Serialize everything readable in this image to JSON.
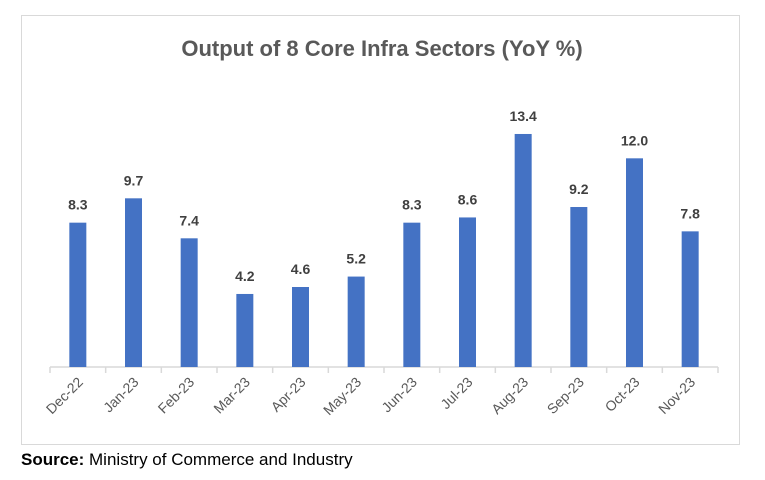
{
  "chart_data": {
    "type": "bar",
    "title": "Output of 8 Core Infra Sectors (YoY %)",
    "categories": [
      "Dec-22",
      "Jan-23",
      "Feb-23",
      "Mar-23",
      "Apr-23",
      "May-23",
      "Jun-23",
      "Jul-23",
      "Aug-23",
      "Sep-23",
      "Oct-23",
      "Nov-23"
    ],
    "values": [
      8.3,
      9.7,
      7.4,
      4.2,
      4.6,
      5.2,
      8.3,
      8.6,
      13.4,
      9.2,
      12.0,
      7.8
    ],
    "value_labels": [
      "8.3",
      "9.7",
      "7.4",
      "4.2",
      "4.6",
      "5.2",
      "8.3",
      "8.6",
      "13.4",
      "9.2",
      "12.0",
      "7.8"
    ],
    "xlabel": "",
    "ylabel": "",
    "ylim": [
      0,
      15
    ],
    "grid": false,
    "legend": "none",
    "bar_color": "#4472c4"
  },
  "source": {
    "label": "Source:",
    "text": " Ministry of Commerce and Industry"
  }
}
